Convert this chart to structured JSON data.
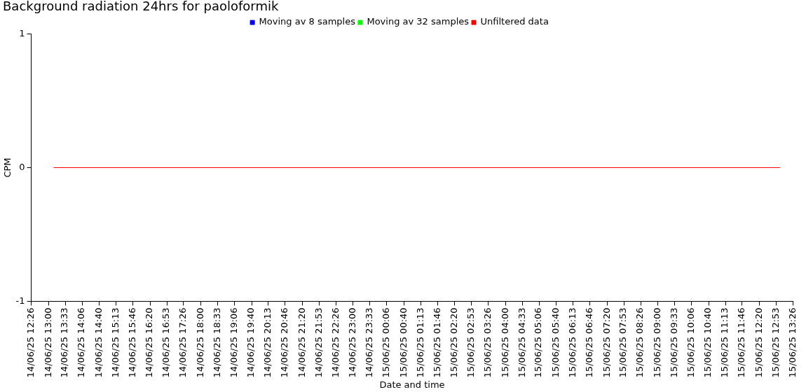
{
  "chart_data": {
    "type": "line",
    "title": "Background radiation 24hrs for paoloformik",
    "xlabel": "Date and time",
    "ylabel": "CPM",
    "xlim": [
      "--06-14T12:26",
      "--06-15T13:26"
    ],
    "xticks": [
      {
        "value": "--06-14T12:26",
        "label": "14/06/25 12:26"
      },
      {
        "value": "--06-14T13:00",
        "label": "14/06/25 13:00"
      },
      {
        "value": "--06-14T13:33",
        "label": "14/06/25 13:33"
      },
      {
        "value": "--06-14T14:06",
        "label": "14/06/25 14:06"
      },
      {
        "value": "--06-14T14:40",
        "label": "14/06/25 14:40"
      },
      {
        "value": "--06-14T15:13",
        "label": "14/06/25 15:13"
      },
      {
        "value": "--06-14T15:46",
        "label": "14/06/25 15:46"
      },
      {
        "value": "--06-14T16:20",
        "label": "14/06/25 16:20"
      },
      {
        "value": "--06-14T16:53",
        "label": "14/06/25 16:53"
      },
      {
        "value": "--06-14T17:26",
        "label": "14/06/25 17:26"
      },
      {
        "value": "--06-14T18:00",
        "label": "14/06/25 18:00"
      },
      {
        "value": "--06-14T18:33",
        "label": "14/06/25 18:33"
      },
      {
        "value": "--06-14T19:06",
        "label": "14/06/25 19:06"
      },
      {
        "value": "--06-14T19:40",
        "label": "14/06/25 19:40"
      },
      {
        "value": "--06-14T20:13",
        "label": "14/06/25 20:13"
      },
      {
        "value": "--06-14T20:46",
        "label": "14/06/25 20:46"
      },
      {
        "value": "--06-14T21:20",
        "label": "14/06/25 21:20"
      },
      {
        "value": "--06-14T21:53",
        "label": "14/06/25 21:53"
      },
      {
        "value": "--06-14T22:26",
        "label": "14/06/25 22:26"
      },
      {
        "value": "--06-14T23:00",
        "label": "14/06/25 23:00"
      },
      {
        "value": "--06-14T23:33",
        "label": "14/06/25 23:33"
      },
      {
        "value": "--06-15T00:06",
        "label": "15/06/25 00:06"
      },
      {
        "value": "--06-15T00:40",
        "label": "15/06/25 00:40"
      },
      {
        "value": "--06-15T01:13",
        "label": "15/06/25 01:13"
      },
      {
        "value": "--06-15T01:46",
        "label": "15/06/25 01:46"
      },
      {
        "value": "--06-15T02:20",
        "label": "15/06/25 02:20"
      },
      {
        "value": "--06-15T02:53",
        "label": "15/06/25 02:53"
      },
      {
        "value": "--06-15T03:26",
        "label": "15/06/25 03:26"
      },
      {
        "value": "--06-15T04:00",
        "label": "15/06/25 04:00"
      },
      {
        "value": "--06-15T04:33",
        "label": "15/06/25 04:33"
      },
      {
        "value": "--06-15T05:06",
        "label": "15/06/25 05:06"
      },
      {
        "value": "--06-15T05:40",
        "label": "15/06/25 05:40"
      },
      {
        "value": "--06-15T06:13",
        "label": "15/06/25 06:13"
      },
      {
        "value": "--06-15T06:46",
        "label": "15/06/25 06:46"
      },
      {
        "value": "--06-15T07:20",
        "label": "15/06/25 07:20"
      },
      {
        "value": "--06-15T07:53",
        "label": "15/06/25 07:53"
      },
      {
        "value": "--06-15T08:26",
        "label": "15/06/25 08:26"
      },
      {
        "value": "--06-15T09:00",
        "label": "15/06/25 09:00"
      },
      {
        "value": "--06-15T09:33",
        "label": "15/06/25 09:33"
      },
      {
        "value": "--06-15T10:06",
        "label": "15/06/25 10:06"
      },
      {
        "value": "--06-15T10:40",
        "label": "15/06/25 10:40"
      },
      {
        "value": "--06-15T11:13",
        "label": "15/06/25 11:13"
      },
      {
        "value": "--06-15T11:46",
        "label": "15/06/25 11:46"
      },
      {
        "value": "--06-15T12:20",
        "label": "15/06/25 12:20"
      },
      {
        "value": "--06-15T12:53",
        "label": "15/06/25 12:53"
      },
      {
        "value": "--06-15T13:26",
        "label": "15/06/25 13:26"
      }
    ],
    "ylim": [
      -1,
      1
    ],
    "yticks": [
      -1,
      0,
      1
    ],
    "grid": false,
    "legend": "top",
    "marker": "none",
    "line_style": "solid",
    "x": [
      "--06-14T13:10",
      "--06-15T13:01"
    ],
    "series": [
      {
        "name": "Moving av 8 samples",
        "color": "#0000ff",
        "values": [
          null,
          null
        ]
      },
      {
        "name": "Moving av 32 samples",
        "color": "#00ff00",
        "values": [
          null,
          null
        ]
      },
      {
        "name": "Unfiltered data",
        "color": "#ff0000",
        "values": [
          0,
          0
        ]
      }
    ]
  }
}
